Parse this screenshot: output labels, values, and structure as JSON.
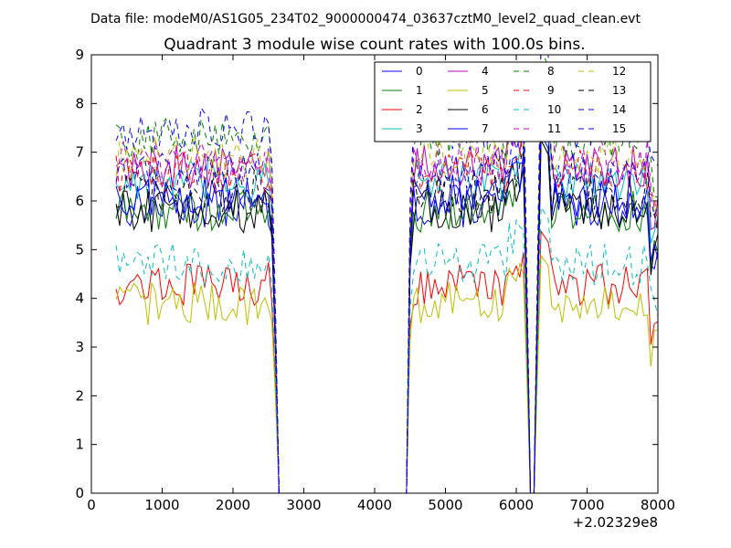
{
  "figure": {
    "suptitle": "Data file: modeM0/AS1G05_234T02_9000000474_03637cztM0_level2_quad_clean.evt",
    "title": "Quadrant 3 module wise count rates with 100.0s bins."
  },
  "chart_data": {
    "type": "line",
    "title": "Quadrant 3 module wise count rates with 100.0s bins.",
    "xlabel": "",
    "ylabel": "",
    "xlim": [
      0,
      8000
    ],
    "ylim": [
      0,
      9
    ],
    "x_offset_label": "+2.02329e8",
    "xticks": [
      0,
      1000,
      2000,
      3000,
      4000,
      5000,
      6000,
      7000,
      8000
    ],
    "yticks": [
      0,
      1,
      2,
      3,
      4,
      5,
      6,
      7,
      8,
      9
    ],
    "grid": false,
    "legend_position": "top-right",
    "legend_columns": 4,
    "series": [
      {
        "name": "0",
        "color": "#0000ff",
        "style": "solid",
        "level": 5.9
      },
      {
        "name": "1",
        "color": "#008000",
        "style": "solid",
        "level": 5.8
      },
      {
        "name": "2",
        "color": "#ff0000",
        "style": "solid",
        "level": 4.3
      },
      {
        "name": "3",
        "color": "#00bfbf",
        "style": "solid",
        "level": 6.4
      },
      {
        "name": "4",
        "color": "#bf00bf",
        "style": "solid",
        "level": 6.7
      },
      {
        "name": "5",
        "color": "#bfbf00",
        "style": "solid",
        "level": 3.9
      },
      {
        "name": "6",
        "color": "#000000",
        "style": "solid",
        "level": 5.8
      },
      {
        "name": "7",
        "color": "#0000ff",
        "style": "solid",
        "level": 6.1
      },
      {
        "name": "8",
        "color": "#008000",
        "style": "dashed",
        "level": 7.3
      },
      {
        "name": "9",
        "color": "#ff0000",
        "style": "dashed",
        "level": 6.6
      },
      {
        "name": "10",
        "color": "#00bfbf",
        "style": "dashed",
        "level": 4.7
      },
      {
        "name": "11",
        "color": "#bf00bf",
        "style": "dashed",
        "level": 6.8
      },
      {
        "name": "12",
        "color": "#bfbf00",
        "style": "dashed",
        "level": 6.9
      },
      {
        "name": "13",
        "color": "#000000",
        "style": "dashed",
        "level": 6.2
      },
      {
        "name": "14",
        "color": "#0000ff",
        "style": "dashed",
        "level": 7.5
      },
      {
        "name": "15",
        "color": "#0000ff",
        "style": "dashed",
        "level": 6.6
      }
    ],
    "active_intervals": [
      [
        350,
        2500
      ],
      [
        4500,
        6150
      ],
      [
        6400,
        8000
      ]
    ],
    "bin_width": 100
  }
}
